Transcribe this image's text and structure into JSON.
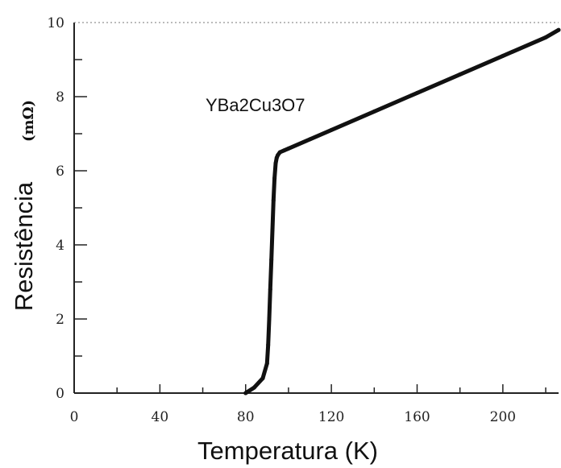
{
  "chart_data": {
    "type": "line",
    "title": "",
    "xlabel": "Temperatura (K)",
    "ylabel": "Resistência",
    "ylabel_unit": "(mΩ)",
    "annotation": "YBa2Cu3O7",
    "xlim": [
      0,
      226
    ],
    "ylim": [
      0,
      10
    ],
    "x_ticks": [
      0,
      40,
      80,
      120,
      160,
      200
    ],
    "x_tick_labels": [
      "0",
      "40",
      "80",
      "120",
      "160",
      "200"
    ],
    "y_ticks": [
      0,
      2,
      4,
      6,
      8,
      10
    ],
    "y_tick_labels": [
      "0",
      "2",
      "4",
      "6",
      "8",
      "10"
    ],
    "grid": false,
    "series": [
      {
        "x": [
          80,
          84,
          88,
          90,
          90.5,
          91,
          91.5,
          92,
          92.5,
          93,
          93.5,
          94,
          94.5,
          95,
          96,
          98,
          100,
          110,
          120,
          140,
          160,
          180,
          200,
          220,
          226
        ],
        "y": [
          0,
          0.15,
          0.4,
          0.8,
          1.3,
          2.0,
          2.8,
          3.6,
          4.4,
          5.2,
          5.8,
          6.2,
          6.35,
          6.42,
          6.5,
          6.55,
          6.6,
          6.85,
          7.1,
          7.6,
          8.1,
          8.6,
          9.1,
          9.6,
          9.8
        ]
      }
    ],
    "colors": {
      "line": "#111111",
      "axes": "#222222",
      "top_border": "#777777"
    }
  }
}
